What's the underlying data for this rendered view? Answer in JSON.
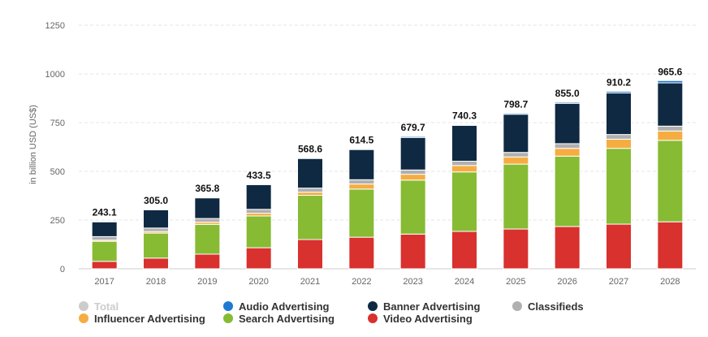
{
  "chart_data": {
    "type": "bar",
    "stacked": true,
    "ylabel": "in billion USD (US$)",
    "xlabel": "",
    "ylim": [
      0,
      1300
    ],
    "yticks": [
      0,
      250,
      500,
      750,
      1000,
      1250
    ],
    "grid": true,
    "categories": [
      "2017",
      "2018",
      "2019",
      "2020",
      "2021",
      "2022",
      "2023",
      "2024",
      "2025",
      "2026",
      "2027",
      "2028"
    ],
    "totals": [
      243.1,
      305.0,
      365.8,
      433.5,
      568.6,
      614.5,
      679.7,
      740.3,
      798.7,
      855.0,
      910.2,
      965.6
    ],
    "total_labels": [
      "243.1",
      "305.0",
      "365.8",
      "433.5",
      "568.6",
      "614.5",
      "679.7",
      "740.3",
      "798.7",
      "855.0",
      "910.2",
      "965.6"
    ],
    "series": [
      {
        "name": "Video Advertising",
        "color": "#d8312e",
        "values": [
          38,
          55,
          75,
          108,
          150,
          162,
          178,
          192,
          204,
          217,
          229,
          241
        ]
      },
      {
        "name": "Search Advertising",
        "color": "#86bb33",
        "values": [
          103,
          128,
          153,
          163,
          227,
          247,
          277,
          305,
          333,
          361,
          389,
          418
        ]
      },
      {
        "name": "Influencer Advertising",
        "color": "#f5ad42",
        "values": [
          6,
          8,
          11,
          14,
          16,
          26,
          30,
          33,
          37,
          40,
          47,
          48
        ]
      },
      {
        "name": "Classifieds",
        "color": "#b0b0b0",
        "values": [
          18,
          18,
          19,
          20,
          21,
          22,
          22,
          22,
          23,
          24,
          24,
          25
        ]
      },
      {
        "name": "Banner Advertising",
        "color": "#0f2942",
        "values": [
          76,
          94,
          106,
          127,
          152,
          155,
          167,
          184,
          196,
          207,
          213,
          222
        ]
      },
      {
        "name": "Audio Advertising",
        "color": "#2079d0",
        "values": [
          2.1,
          2.0,
          1.8,
          1.5,
          2.6,
          2.5,
          5.7,
          4.3,
          5.7,
          6.0,
          8.2,
          11.6
        ]
      }
    ],
    "legend": {
      "placement": "bottom-left",
      "items": [
        {
          "name": "Total",
          "color": "#cccccc",
          "disabled": true
        },
        {
          "name": "Audio Advertising",
          "color": "#2079d0"
        },
        {
          "name": "Banner Advertising",
          "color": "#0f2942"
        },
        {
          "name": "Classifieds",
          "color": "#b0b0b0"
        },
        {
          "name": "Influencer Advertising",
          "color": "#f5ad42"
        },
        {
          "name": "Search Advertising",
          "color": "#86bb33"
        },
        {
          "name": "Video Advertising",
          "color": "#d8312e"
        }
      ]
    }
  }
}
